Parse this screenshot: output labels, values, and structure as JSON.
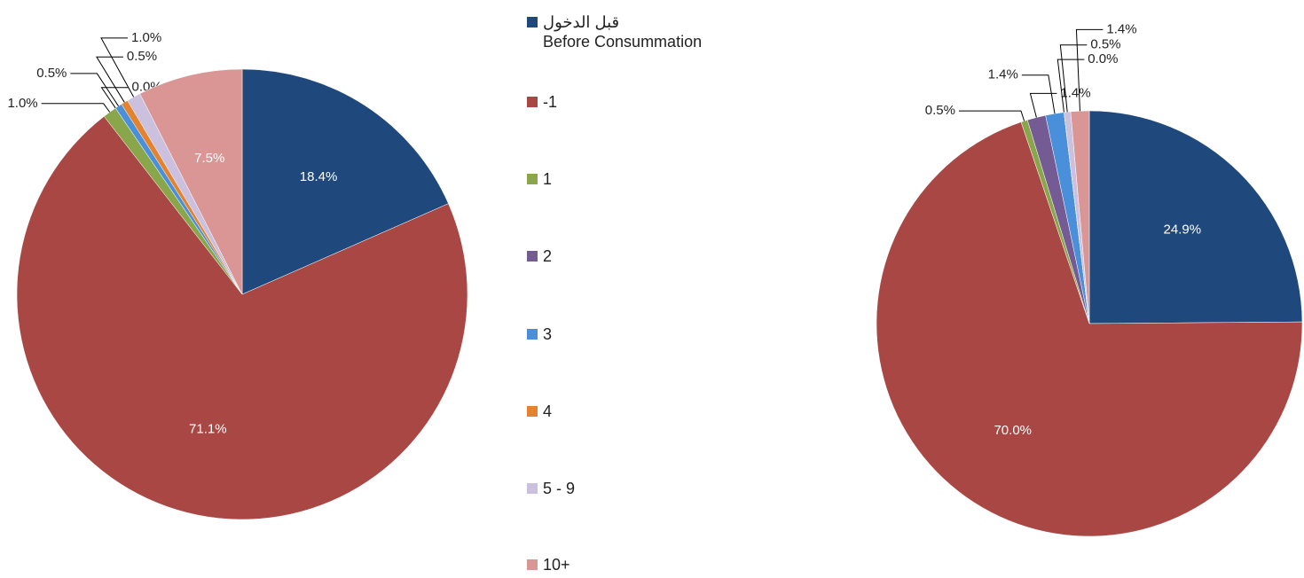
{
  "chart_data": [
    {
      "type": "pie",
      "values": [
        18.4,
        71.1,
        1.0,
        0.0,
        0.5,
        0.5,
        1.0,
        7.5
      ],
      "value_labels": [
        "18.4%",
        "71.1%",
        "1.0%",
        "0.0%",
        "0.5%",
        "0.5%",
        "1.0%",
        "7.5%"
      ]
    },
    {
      "type": "pie",
      "values": [
        24.9,
        70.0,
        0.5,
        1.4,
        1.4,
        0.0,
        0.5,
        1.4
      ],
      "value_labels": [
        "24.9%",
        "70.0%",
        "0.5%",
        "1.4%",
        "1.4%",
        "0.0%",
        "0.5%",
        "1.4%"
      ]
    }
  ],
  "legend": {
    "categories": [
      "قبل الدخول\nBefore Consummation",
      "-1",
      "1",
      "2",
      "3",
      "4",
      "5 - 9",
      "10+"
    ],
    "colors": [
      "#1f497d",
      "#a94744",
      "#8aa64b",
      "#755b93",
      "#4a8fd9",
      "#e3832f",
      "#cbc1de",
      "#d99694"
    ]
  }
}
